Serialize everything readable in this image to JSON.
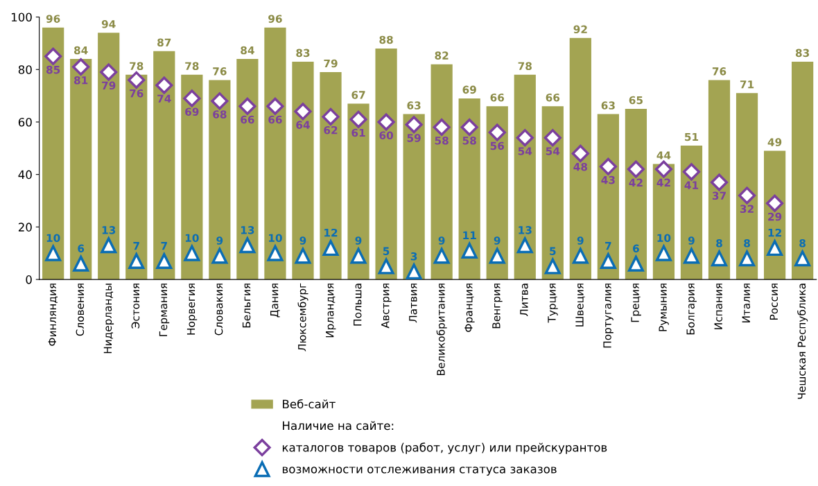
{
  "chart_data": {
    "type": "bar",
    "categories": [
      "Финляндия",
      "Словения",
      "Нидерланды",
      "Эстония",
      "Германия",
      "Норвегия",
      "Словакия",
      "Бельгия",
      "Дания",
      "Люксембург",
      "Ирландия",
      "Польша",
      "Австрия",
      "Латвия",
      "Великобритания",
      "Франция",
      "Венгрия",
      "Литва",
      "Турция",
      "Швеция",
      "Португалия",
      "Греция",
      "Румыния",
      "Болгария",
      "Испания",
      "Италия",
      "Россия",
      "Чешская Республика"
    ],
    "series": [
      {
        "name": "Веб-сайт",
        "color": "#a3a452",
        "values": [
          96,
          84,
          94,
          78,
          87,
          78,
          76,
          84,
          96,
          83,
          79,
          67,
          88,
          63,
          82,
          69,
          66,
          78,
          66,
          92,
          63,
          65,
          44,
          51,
          76,
          71,
          49,
          83
        ]
      },
      {
        "name": "каталогов товаров (работ, услуг) или прейскурантов",
        "type": "scatter",
        "marker": "diamond",
        "color": "#7b3f9e",
        "values": [
          85,
          81,
          79,
          76,
          74,
          69,
          68,
          66,
          66,
          64,
          62,
          61,
          60,
          59,
          58,
          58,
          56,
          54,
          54,
          48,
          43,
          42,
          42,
          41,
          37,
          32,
          29,
          null
        ]
      },
      {
        "name": "возможности отслеживания статуса заказов",
        "type": "scatter",
        "marker": "triangle",
        "color": "#0a6db5",
        "values": [
          10,
          6,
          13,
          7,
          7,
          10,
          9,
          13,
          10,
          9,
          12,
          9,
          5,
          3,
          9,
          11,
          9,
          13,
          5,
          9,
          7,
          6,
          10,
          9,
          8,
          8,
          12,
          8
        ]
      }
    ],
    "legend_title": "Наличие на сайте:",
    "legend": "bottom",
    "data_labels": true,
    "grid": false,
    "ylim": [
      0,
      100
    ],
    "yticks": [
      0,
      20,
      40,
      60,
      80,
      100
    ]
  }
}
